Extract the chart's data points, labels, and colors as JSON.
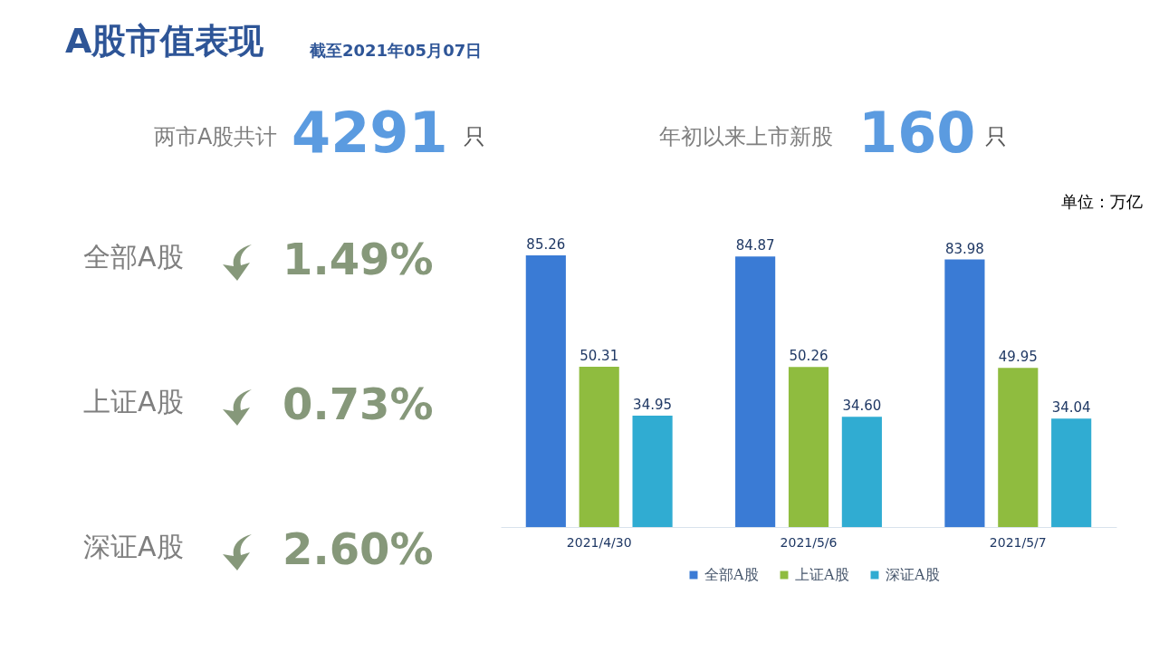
{
  "chart_data": {
    "type": "bar",
    "title": "A股市值表现",
    "subtitle": "截至2021年05月07日",
    "categories": [
      "2021/4/30",
      "2021/5/6",
      "2021/5/7"
    ],
    "series": [
      {
        "name": "全部A股",
        "color": "#3a7bd5",
        "values": [
          85.26,
          84.87,
          83.98
        ],
        "value_labels": [
          "85.26",
          "84.87",
          "83.98"
        ]
      },
      {
        "name": "上证A股",
        "color": "#8fbc3f",
        "values": [
          50.31,
          50.26,
          49.95
        ],
        "value_labels": [
          "50.31",
          "50.26",
          "49.95"
        ]
      },
      {
        "name": "深证A股",
        "color": "#30acd2",
        "values": [
          34.95,
          34.6,
          34.04
        ],
        "value_labels": [
          "34.95",
          "34.60",
          "34.04"
        ]
      }
    ],
    "legend": "bottom",
    "annotations": [
      "两市A股共计",
      "4291",
      "只",
      "年初以来上市新股",
      "160",
      "只",
      "单位：万亿",
      "全部A股",
      "1.49%",
      "上证A股",
      "0.73%",
      "深证A股",
      "2.60%"
    ]
  }
}
